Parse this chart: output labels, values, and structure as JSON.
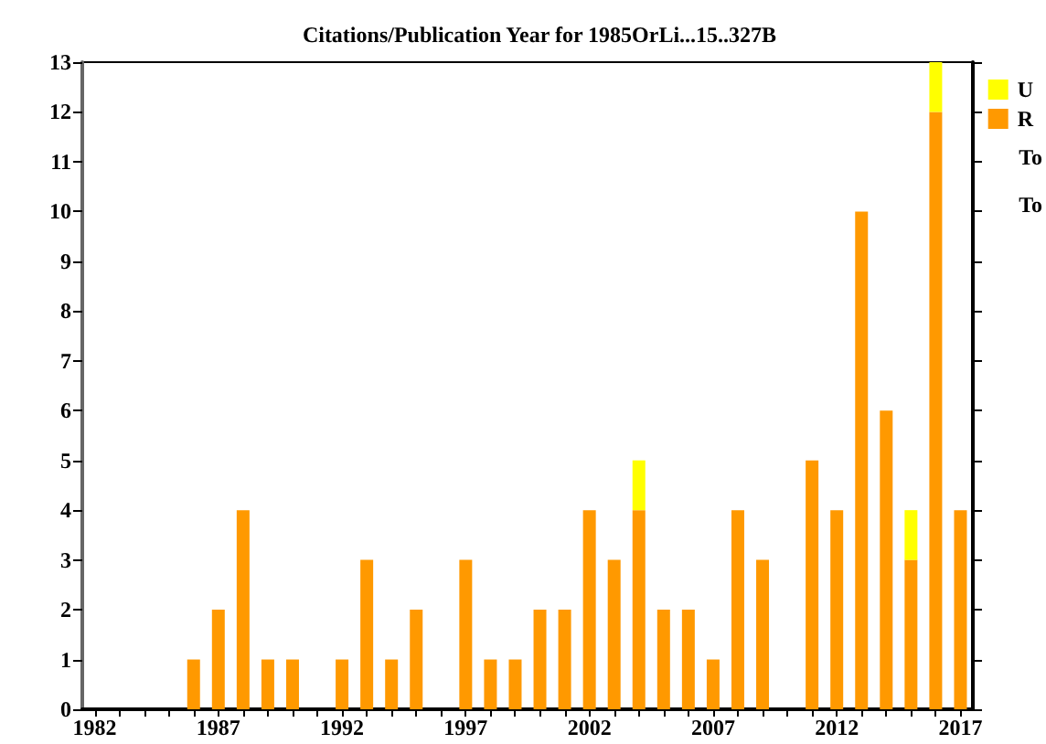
{
  "chart_data": {
    "type": "bar",
    "title": "Citations/Publication Year for 1985OrLi...15..327B",
    "categories": [
      "1982",
      null,
      null,
      null,
      null,
      "1987",
      null,
      null,
      null,
      null,
      "1992",
      null,
      null,
      null,
      null,
      "1997",
      null,
      null,
      null,
      null,
      "2002",
      null,
      null,
      null,
      null,
      "2007",
      null,
      null,
      null,
      null,
      "2012",
      null,
      null,
      null,
      null,
      "2017"
    ],
    "stacked": true,
    "series": [
      {
        "name": "R",
        "color": "#ff9900",
        "values": [
          0,
          0,
          0,
          0,
          1,
          2,
          4,
          1,
          1,
          0,
          1,
          3,
          1,
          2,
          0,
          3,
          1,
          1,
          2,
          2,
          4,
          3,
          4,
          2,
          2,
          1,
          4,
          3,
          0,
          5,
          4,
          10,
          6,
          3,
          12,
          4
        ]
      },
      {
        "name": "U",
        "color": "#ffff00",
        "values": [
          0,
          0,
          0,
          0,
          0,
          0,
          0,
          0,
          0,
          0,
          0,
          0,
          0,
          0,
          0,
          0,
          0,
          0,
          0,
          0,
          0,
          0,
          1,
          0,
          0,
          0,
          0,
          0,
          0,
          0,
          0,
          0,
          0,
          1,
          1,
          0
        ]
      }
    ],
    "ylim": [
      0,
      13
    ],
    "yticks": [
      0,
      1,
      2,
      3,
      4,
      5,
      6,
      7,
      8,
      9,
      10,
      11,
      12,
      13
    ],
    "grid": false,
    "legend": "top right",
    "annotations": [
      "To",
      "To"
    ]
  }
}
